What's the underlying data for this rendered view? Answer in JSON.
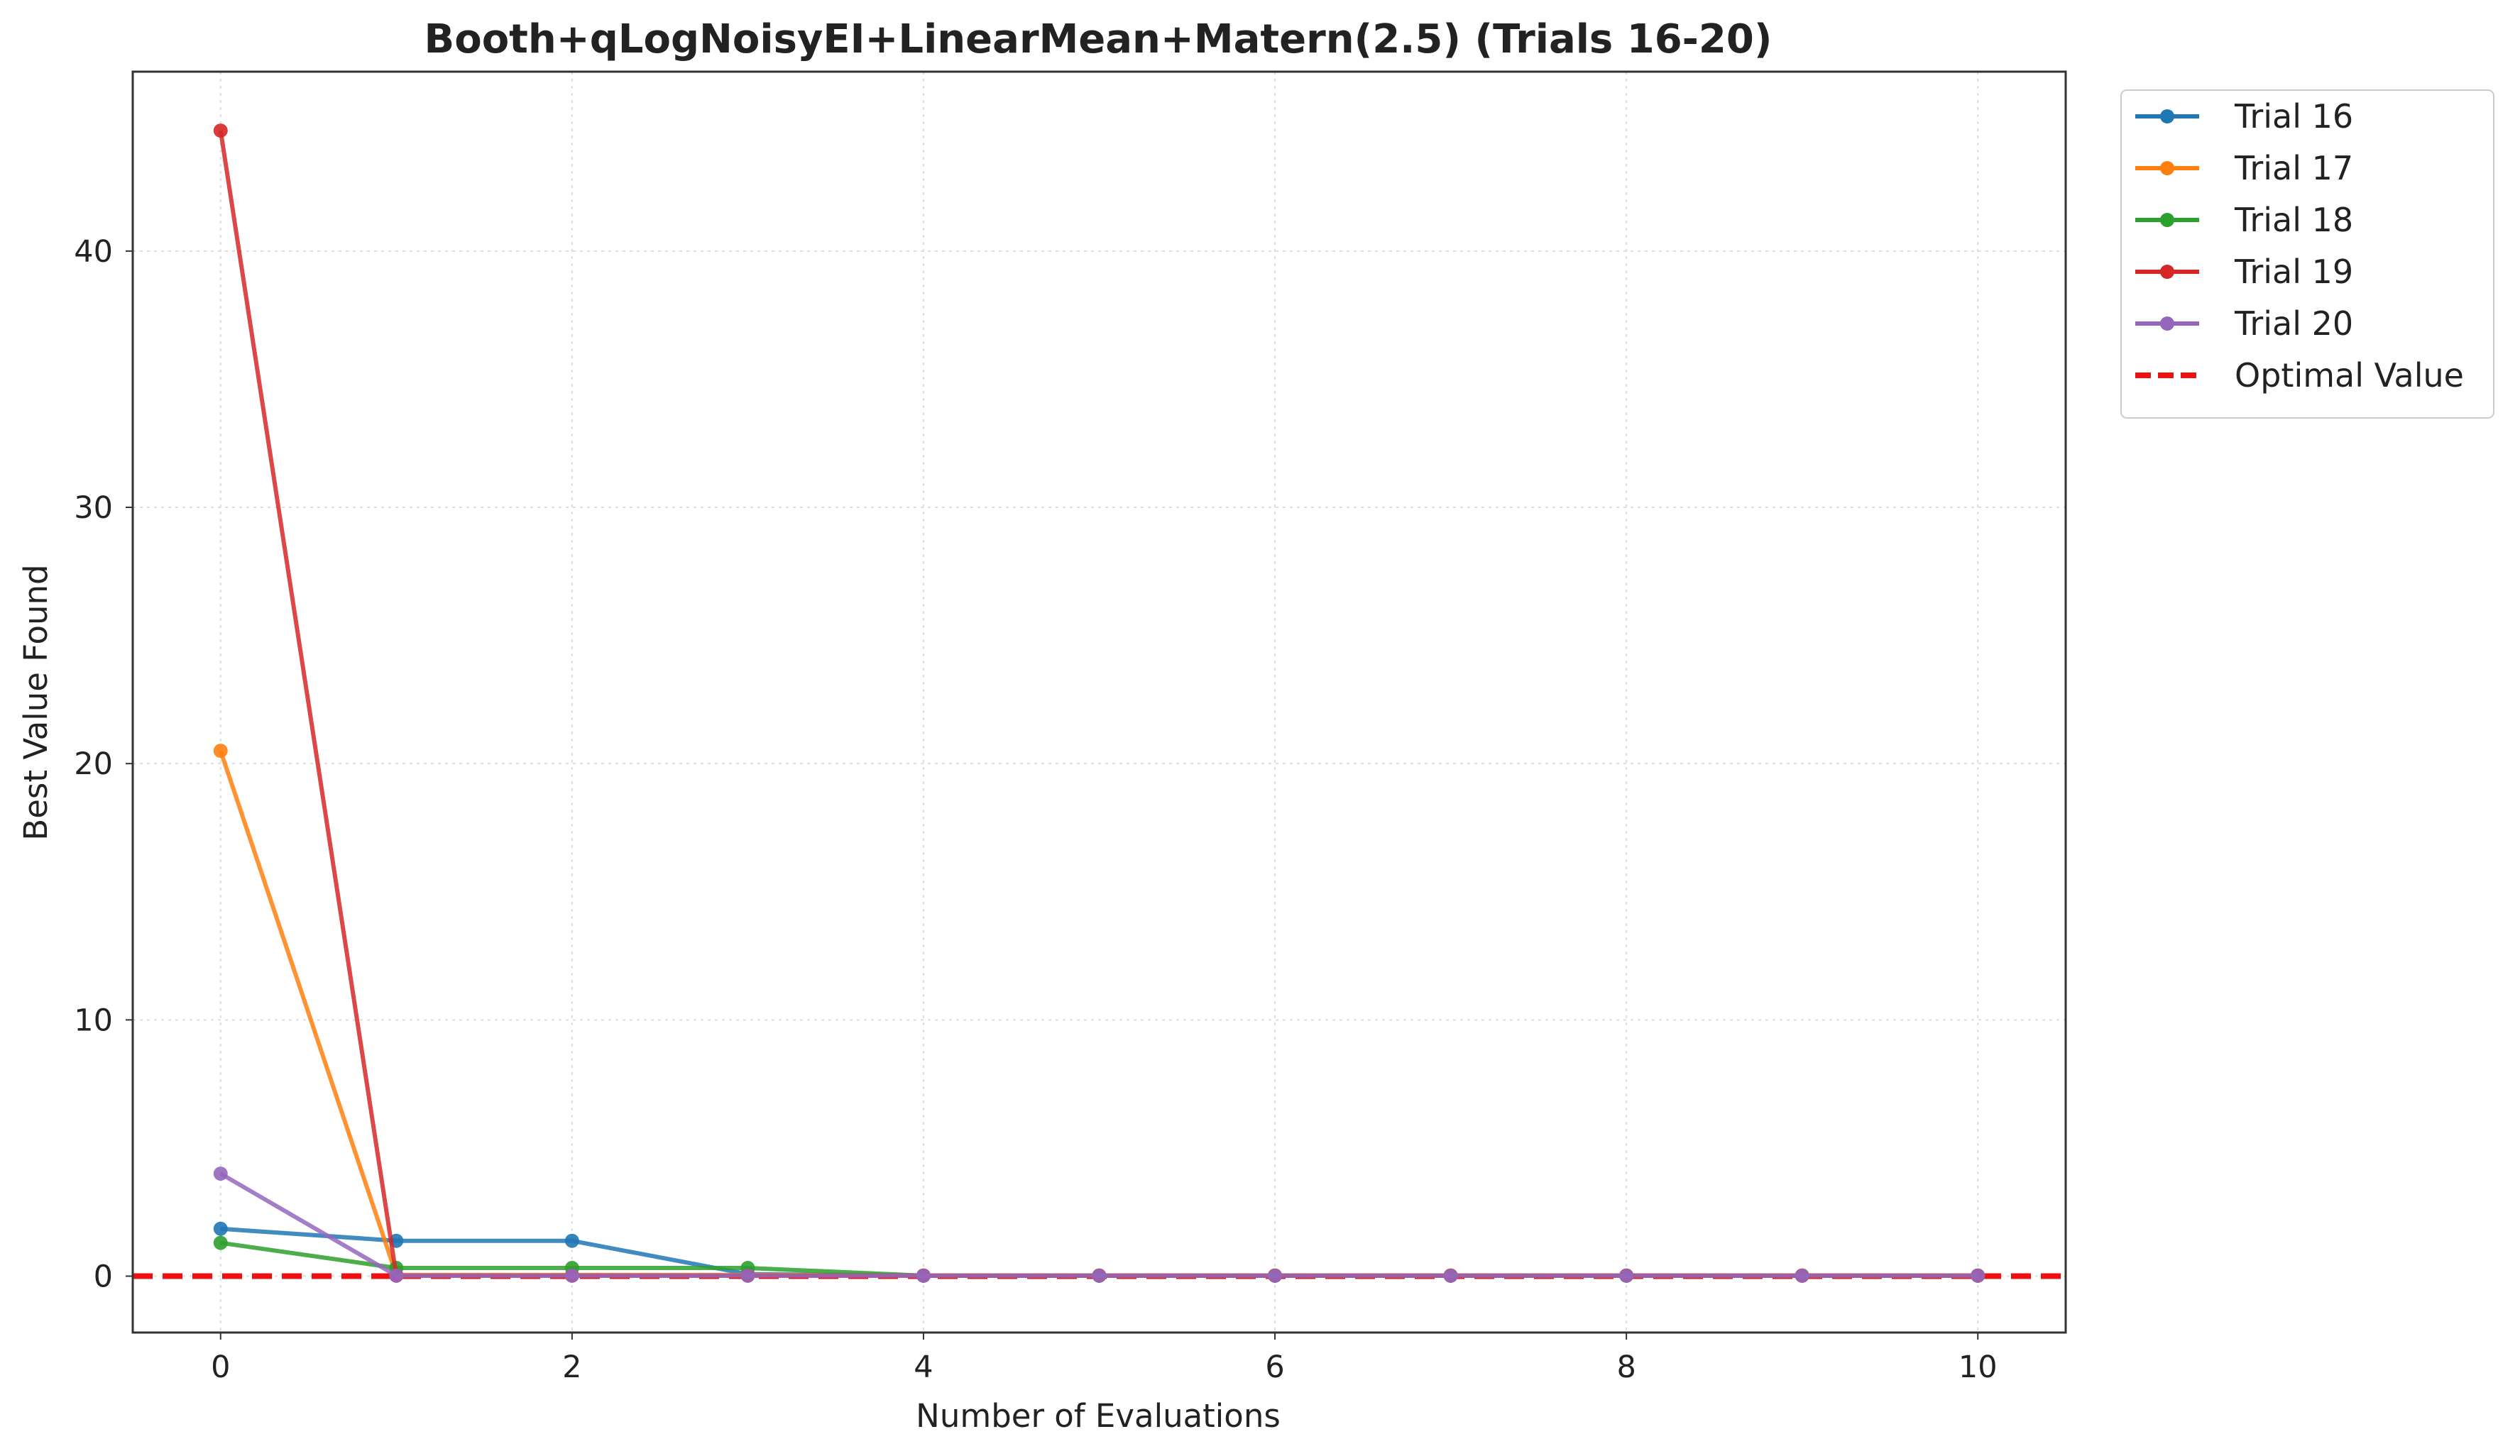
{
  "chart_data": {
    "type": "line",
    "title": "Booth+qLogNoisyEI+LinearMean+Matern(2.5) (Trials 16-20)",
    "xlabel": "Number of Evaluations",
    "ylabel": "Best Value Found",
    "xlim": [
      -0.5,
      10.5
    ],
    "ylim": [
      -2.2,
      47.0
    ],
    "xticks": [
      0,
      2,
      4,
      6,
      8,
      10
    ],
    "yticks": [
      0,
      10,
      20,
      30,
      40
    ],
    "x": [
      0,
      1,
      2,
      3,
      4,
      5,
      6,
      7,
      8,
      9,
      10
    ],
    "grid": true,
    "legend_position": "outside-top-right",
    "series": [
      {
        "name": "Trial 16",
        "color": "#1f77b4",
        "values": [
          1.85,
          1.38,
          1.38,
          0.08,
          0.02,
          0.02,
          0.02,
          0.02,
          0.02,
          0.02,
          0.02
        ]
      },
      {
        "name": "Trial 17",
        "color": "#ff7f0e",
        "values": [
          20.5,
          0.05,
          0.05,
          0.05,
          0.03,
          0.03,
          0.03,
          0.03,
          0.03,
          0.03,
          0.03
        ]
      },
      {
        "name": "Trial 18",
        "color": "#2ca02c",
        "values": [
          1.3,
          0.32,
          0.32,
          0.32,
          0.02,
          0.02,
          0.02,
          0.02,
          0.02,
          0.02,
          0.02
        ]
      },
      {
        "name": "Trial 19",
        "color": "#d62728",
        "values": [
          44.7,
          0.02,
          0.02,
          0.02,
          0.02,
          0.02,
          0.02,
          0.02,
          0.02,
          0.02,
          0.02
        ]
      },
      {
        "name": "Trial 20",
        "color": "#9467bd",
        "values": [
          4.0,
          0.02,
          0.02,
          0.02,
          0.02,
          0.02,
          0.02,
          0.02,
          0.02,
          0.02,
          0.02
        ]
      }
    ],
    "reference_line": {
      "name": "Optimal Value",
      "y": 0,
      "color": "#ee1111",
      "style": "dashed"
    }
  }
}
